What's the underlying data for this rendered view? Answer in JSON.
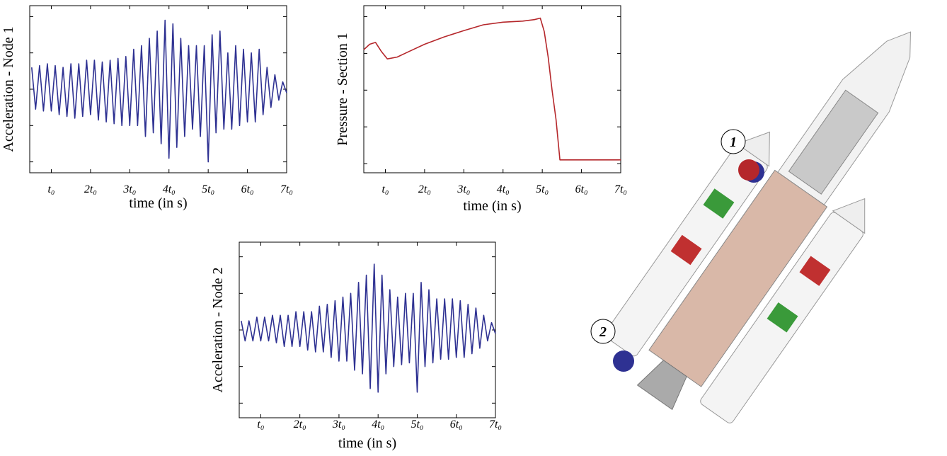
{
  "chart_data": [
    {
      "type": "line",
      "color": "#2e3192",
      "ylabel": "Acceleration - Node 1",
      "xlabel": "time (in s)",
      "xlim": [
        0.45,
        7
      ],
      "ylim": [
        -2.3,
        2.3
      ],
      "yticks": [
        -2,
        -1,
        0,
        1,
        2
      ],
      "xticks": [
        {
          "value": 1,
          "label": "t₀"
        },
        {
          "value": 2,
          "label": "2t₀"
        },
        {
          "value": 3,
          "label": "3t₀"
        },
        {
          "value": 4,
          "label": "4t₀"
        },
        {
          "value": 5,
          "label": "5t₀"
        },
        {
          "value": 6,
          "label": "6t₀"
        },
        {
          "value": 7,
          "label": "7t₀"
        }
      ],
      "x": [
        0.5,
        0.6,
        0.7,
        0.8,
        0.9,
        1.0,
        1.1,
        1.2,
        1.3,
        1.4,
        1.5,
        1.6,
        1.7,
        1.8,
        1.9,
        2.0,
        2.1,
        2.2,
        2.3,
        2.4,
        2.5,
        2.6,
        2.7,
        2.8,
        2.9,
        3.0,
        3.1,
        3.2,
        3.3,
        3.4,
        3.5,
        3.6,
        3.7,
        3.8,
        3.9,
        4.0,
        4.1,
        4.2,
        4.3,
        4.4,
        4.5,
        4.6,
        4.7,
        4.8,
        4.9,
        5.0,
        5.1,
        5.2,
        5.3,
        5.4,
        5.5,
        5.6,
        5.7,
        5.8,
        5.9,
        6.0,
        6.1,
        6.2,
        6.3,
        6.4,
        6.5,
        6.6,
        6.7,
        6.8,
        6.9,
        7.0
      ],
      "values": [
        0.6,
        -0.55,
        0.65,
        -0.6,
        0.7,
        -0.6,
        0.65,
        -0.7,
        0.6,
        -0.75,
        0.7,
        -0.8,
        0.7,
        -0.75,
        0.8,
        -0.7,
        0.8,
        -0.85,
        0.75,
        -0.9,
        0.8,
        -0.95,
        0.85,
        -1.0,
        0.9,
        -1.0,
        1.1,
        -1.0,
        1.2,
        -1.3,
        1.4,
        -1.2,
        1.6,
        -1.5,
        1.9,
        -1.9,
        1.8,
        -1.6,
        1.4,
        -1.3,
        1.2,
        -1.1,
        1.2,
        -1.3,
        1.2,
        -2.0,
        1.5,
        -1.2,
        1.6,
        -1.1,
        1.0,
        -1.1,
        1.2,
        -1.0,
        1.1,
        -0.9,
        1.0,
        -0.9,
        1.1,
        -0.7,
        0.6,
        -0.5,
        0.4,
        -0.3,
        0.2,
        -0.1
      ]
    },
    {
      "type": "line",
      "color": "#b5272b",
      "ylabel": "Pressure - Section 1",
      "xlabel": "time (in s)",
      "xlim": [
        0.45,
        7
      ],
      "ylim": [
        -0.25,
        4.3
      ],
      "yticks": [
        0,
        1,
        2,
        3,
        4
      ],
      "xticks": [
        {
          "value": 1,
          "label": "t₀"
        },
        {
          "value": 2,
          "label": "2t₀"
        },
        {
          "value": 3,
          "label": "3t₀"
        },
        {
          "value": 4,
          "label": "4t₀"
        },
        {
          "value": 5,
          "label": "5t₀"
        },
        {
          "value": 6,
          "label": "6t₀"
        },
        {
          "value": 7,
          "label": "7t₀"
        }
      ],
      "x": [
        0.45,
        0.6,
        0.75,
        0.9,
        1.05,
        1.3,
        1.6,
        2,
        2.5,
        3,
        3.5,
        4,
        4.5,
        4.8,
        4.95,
        5.05,
        5.15,
        5.25,
        5.35,
        5.45,
        6,
        7
      ],
      "values": [
        3.1,
        3.25,
        3.3,
        3.05,
        2.85,
        2.9,
        3.05,
        3.25,
        3.45,
        3.62,
        3.78,
        3.85,
        3.88,
        3.92,
        3.96,
        3.6,
        2.9,
        2.0,
        1.2,
        0.1,
        0.1,
        0.1
      ]
    },
    {
      "type": "line",
      "color": "#2e3192",
      "ylabel": "Acceleration - Node 2",
      "xlabel": "time (in s)",
      "xlim": [
        0.45,
        7
      ],
      "ylim": [
        -2.4,
        2.4
      ],
      "yticks": [
        -2,
        -1,
        0,
        1,
        2
      ],
      "xticks": [
        {
          "value": 1,
          "label": "t₀"
        },
        {
          "value": 2,
          "label": "2t₀"
        },
        {
          "value": 3,
          "label": "3t₀"
        },
        {
          "value": 4,
          "label": "4t₀"
        },
        {
          "value": 5,
          "label": "5t₀"
        },
        {
          "value": 6,
          "label": "6t₀"
        },
        {
          "value": 7,
          "label": "7t₀"
        }
      ],
      "x": [
        0.5,
        0.6,
        0.7,
        0.8,
        0.9,
        1.0,
        1.1,
        1.2,
        1.3,
        1.4,
        1.5,
        1.6,
        1.7,
        1.8,
        1.9,
        2.0,
        2.1,
        2.2,
        2.3,
        2.4,
        2.5,
        2.6,
        2.7,
        2.8,
        2.9,
        3.0,
        3.1,
        3.2,
        3.3,
        3.4,
        3.5,
        3.6,
        3.7,
        3.8,
        3.9,
        4.0,
        4.1,
        4.2,
        4.3,
        4.4,
        4.5,
        4.6,
        4.7,
        4.8,
        4.9,
        5.0,
        5.1,
        5.2,
        5.3,
        5.4,
        5.5,
        5.6,
        5.7,
        5.8,
        5.9,
        6.0,
        6.1,
        6.2,
        6.3,
        6.4,
        6.5,
        6.6,
        6.7,
        6.8,
        6.9,
        7.0
      ],
      "values": [
        0.25,
        -0.3,
        0.25,
        -0.3,
        0.35,
        -0.3,
        0.35,
        -0.3,
        0.4,
        -0.35,
        0.4,
        -0.45,
        0.4,
        -0.45,
        0.5,
        -0.45,
        0.5,
        -0.55,
        0.5,
        -0.6,
        0.65,
        -0.6,
        0.7,
        -0.75,
        0.8,
        -0.85,
        0.9,
        -0.85,
        1.0,
        -1.1,
        1.3,
        -1.2,
        1.5,
        -1.6,
        1.8,
        -1.7,
        1.5,
        -1.2,
        1.1,
        -1.0,
        0.9,
        -0.95,
        1.0,
        -0.9,
        1.0,
        -1.7,
        1.3,
        -1.0,
        1.1,
        -0.9,
        0.85,
        -0.8,
        0.85,
        -0.8,
        0.85,
        -0.75,
        0.8,
        -0.75,
        0.7,
        -0.65,
        0.6,
        -0.5,
        0.4,
        -0.3,
        0.2,
        -0.1
      ]
    }
  ],
  "illustration": {
    "markers": [
      "1",
      "2"
    ]
  }
}
